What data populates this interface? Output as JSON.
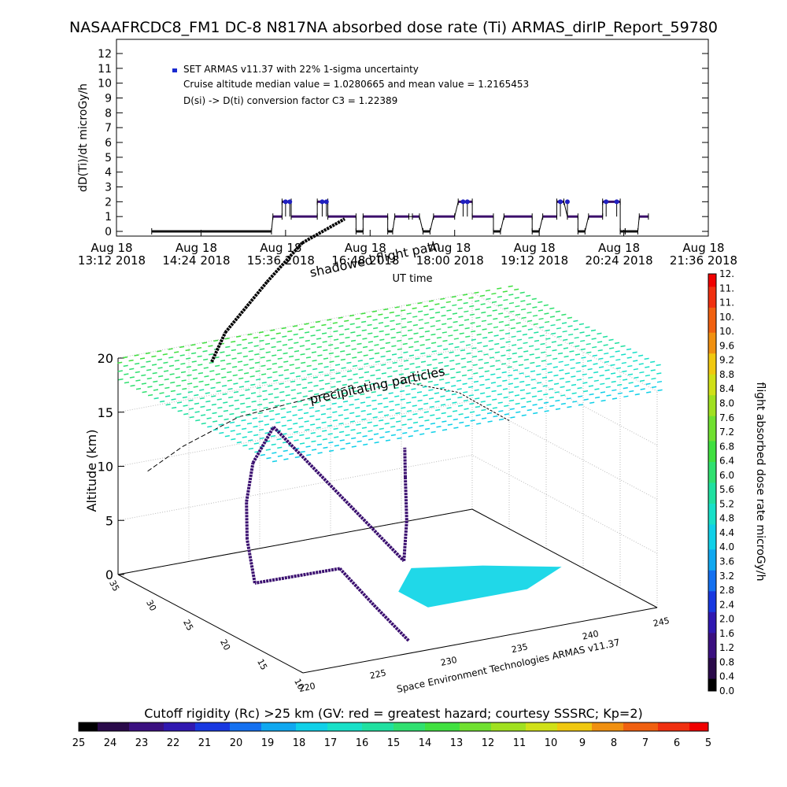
{
  "title": "NASAAFRCDC8_FM1 DC-8   N817NA absorbed dose rate (Ti) ARMAS_dirIP_Report_59780",
  "chart_data": [
    {
      "type": "scatter",
      "ylabel": "dD(Ti)/dt microGy/h",
      "yticks": [
        "0",
        "1",
        "2",
        "3",
        "4",
        "5",
        "6",
        "7",
        "8",
        "9",
        "10",
        "11",
        "12"
      ],
      "ylim": [
        0,
        12
      ],
      "xlabel": "UT time",
      "xticks": [
        {
          "line1": "Aug 18",
          "line2": "13:12 2018"
        },
        {
          "line1": "Aug 18",
          "line2": "14:24 2018"
        },
        {
          "line1": "Aug 18",
          "line2": "15:36 2018"
        },
        {
          "line1": "Aug 18",
          "line2": "16:48 2018"
        },
        {
          "line1": "Aug 18",
          "line2": "18:00 2018"
        },
        {
          "line1": "Aug 18",
          "line2": "19:12 2018"
        },
        {
          "line1": "Aug 18",
          "line2": "20:24 2018"
        },
        {
          "line1": "Aug 18",
          "line2": "21:36 2018"
        }
      ],
      "xlim_hours": [
        13.2,
        21.6
      ],
      "legend": {
        "series_name": "SET ARMAS v11.37 with 22% 1-sigma uncertainty",
        "note1": "Cruise altitude median value = 1.0280665 and mean value = 1.2165453",
        "note2": "D(si) -> D(ti) conversion factor C3 = 1.22389",
        "position": "top-left"
      },
      "series": [
        {
          "name": "SET ARMAS v11.37 with 22% 1-sigma uncertainty",
          "color": "#3b0f6b",
          "segments": [
            {
              "t0": 13.7,
              "t1": 15.4,
              "value": 0
            },
            {
              "t0": 15.42,
              "t1": 15.55,
              "value": 1
            },
            {
              "t0": 15.55,
              "t1": 15.68,
              "value": 2
            },
            {
              "t0": 15.68,
              "t1": 16.05,
              "value": 1
            },
            {
              "t0": 16.05,
              "t1": 16.2,
              "value": 2
            },
            {
              "t0": 16.2,
              "t1": 16.6,
              "value": 1
            },
            {
              "t0": 16.6,
              "t1": 16.7,
              "value": 0
            },
            {
              "t0": 16.7,
              "t1": 17.05,
              "value": 1
            },
            {
              "t0": 17.05,
              "t1": 17.12,
              "value": 0
            },
            {
              "t0": 17.15,
              "t1": 17.35,
              "value": 1
            },
            {
              "t0": 17.4,
              "t1": 17.5,
              "value": 1
            },
            {
              "t0": 17.55,
              "t1": 17.65,
              "value": 0
            },
            {
              "t0": 17.7,
              "t1": 18.0,
              "value": 1
            },
            {
              "t0": 18.05,
              "t1": 18.25,
              "value": 2
            },
            {
              "t0": 18.25,
              "t1": 18.55,
              "value": 1
            },
            {
              "t0": 18.55,
              "t1": 18.65,
              "value": 0
            },
            {
              "t0": 18.7,
              "t1": 19.1,
              "value": 1
            },
            {
              "t0": 19.1,
              "t1": 19.2,
              "value": 0
            },
            {
              "t0": 19.25,
              "t1": 19.45,
              "value": 1
            },
            {
              "t0": 19.45,
              "t1": 19.55,
              "value": 2
            },
            {
              "t0": 19.6,
              "t1": 19.75,
              "value": 1
            },
            {
              "t0": 19.75,
              "t1": 19.85,
              "value": 0
            },
            {
              "t0": 19.9,
              "t1": 20.1,
              "value": 1
            },
            {
              "t0": 20.1,
              "t1": 20.35,
              "value": 2
            },
            {
              "t0": 20.35,
              "t1": 20.42,
              "value": 0
            },
            {
              "t0": 20.42,
              "t1": 20.6,
              "value": 0
            },
            {
              "t0": 20.62,
              "t1": 20.75,
              "value": 1
            }
          ],
          "spikes": [
            15.6,
            15.66,
            16.12,
            16.18,
            18.12,
            18.18,
            19.5,
            19.6,
            20.15,
            20.3
          ]
        }
      ]
    },
    {
      "type": "scatter",
      "zlabel": "Altitude (km)",
      "zticks": [
        "0",
        "5",
        "10",
        "15",
        "20"
      ],
      "zlim": [
        0,
        20
      ],
      "lat_ticks": [
        "10",
        "15",
        "20",
        "25",
        "30",
        "35"
      ],
      "lon_ticks": [
        "220",
        "225",
        "230",
        "235",
        "240",
        "245"
      ],
      "credit": "Space Environment Technologies ARMAS v11.37",
      "annotations": [
        "shadowed flight path",
        "precipitating particles"
      ],
      "track_points": [
        [
          228.5,
          12,
          0.2
        ],
        [
          230.2,
          20,
          0.2
        ],
        [
          232.0,
          28,
          0.2
        ],
        [
          226.0,
          28,
          0.3
        ],
        [
          226.5,
          30,
          3.5
        ],
        [
          227.5,
          32,
          6.0
        ],
        [
          229.0,
          34,
          8.5
        ],
        [
          231.5,
          36,
          10.5
        ],
        [
          236.0,
          27,
          0.3
        ],
        [
          236.2,
          27,
          4.0
        ],
        [
          236.1,
          27,
          8.0
        ],
        [
          235.8,
          26.5,
          11.0
        ]
      ]
    },
    {
      "type": "heatmap",
      "ylabel": "flight absorbed dose rate microGy/h",
      "ticks": [
        "0.0",
        "0.4",
        "0.8",
        "1.2",
        "1.6",
        "2.0",
        "2.4",
        "2.8",
        "3.2",
        "3.6",
        "4.0",
        "4.4",
        "4.8",
        "5.2",
        "5.6",
        "6.0",
        "6.4",
        "6.8",
        "7.2",
        "7.6",
        "8.0",
        "8.4",
        "8.8",
        "9.2",
        "9.6",
        "10.",
        "10.",
        "11.",
        "11.",
        "12."
      ],
      "range": [
        0,
        12
      ]
    },
    {
      "type": "heatmap",
      "xlabel": "Cutoff rigidity (Rc) >25 km (GV: red = greatest hazard; courtesy SSSRC; Kp=2)",
      "ticks": [
        "25",
        "24",
        "23",
        "22",
        "21",
        "20",
        "19",
        "18",
        "17",
        "16",
        "15",
        "14",
        "13",
        "12",
        "11",
        "10",
        "9",
        "8",
        "7",
        "6",
        "5"
      ],
      "range": [
        25,
        5
      ]
    }
  ],
  "colors": {
    "palette": [
      "#000000",
      "#2a0a4a",
      "#3b1080",
      "#3018b0",
      "#1838e0",
      "#1470f0",
      "#10a8f0",
      "#10d0e8",
      "#18e0c8",
      "#20e0a0",
      "#30e070",
      "#40e040",
      "#70e030",
      "#a0e020",
      "#d0e018",
      "#f0c810",
      "#f09010",
      "#f06010",
      "#f03010",
      "#f00000"
    ],
    "track": "#000000",
    "low_dose": "#3b0f6b",
    "grid": "#000000"
  }
}
